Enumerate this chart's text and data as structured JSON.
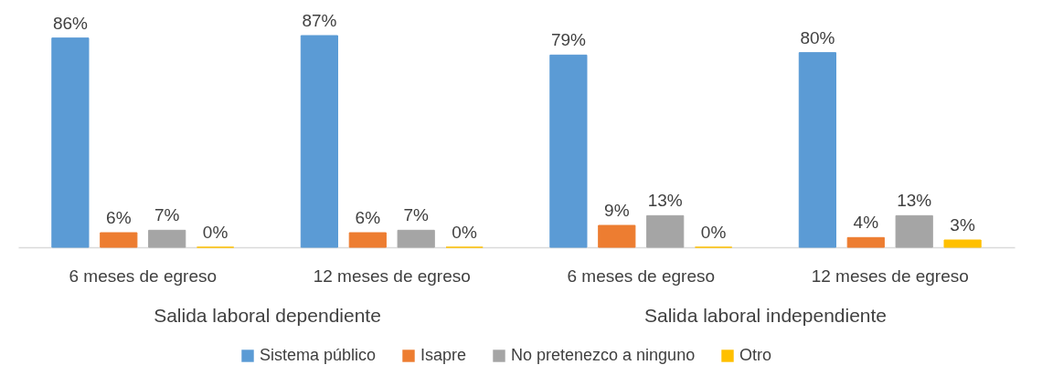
{
  "chart_data": {
    "type": "bar",
    "categories": [
      "6 meses de egreso",
      "12 meses de egreso",
      "6 meses de egreso",
      "12 meses de egreso"
    ],
    "annotations": [
      "Salida laboral dependiente",
      "Salida laboral independiente"
    ],
    "series": [
      {
        "name": "Sistema público",
        "color": "#5b9bd5",
        "values": [
          86,
          87,
          79,
          80
        ],
        "value_labels": [
          "86%",
          "87%",
          "79%",
          "80%"
        ]
      },
      {
        "name": "Isapre",
        "color": "#ed7d31",
        "values": [
          6,
          6,
          9,
          4
        ],
        "value_labels": [
          "6%",
          "6%",
          "9%",
          "4%"
        ]
      },
      {
        "name": "No pretenezco a ninguno",
        "color": "#a5a5a5",
        "values": [
          7,
          7,
          13,
          13
        ],
        "value_labels": [
          "7%",
          "7%",
          "13%",
          "13%"
        ]
      },
      {
        "name": "Otro",
        "color": "#ffc000",
        "values": [
          0,
          0,
          0,
          3
        ],
        "value_labels": [
          "0%",
          "0%",
          "0%",
          "3%"
        ]
      }
    ],
    "grid": false,
    "legend": "bottom"
  }
}
